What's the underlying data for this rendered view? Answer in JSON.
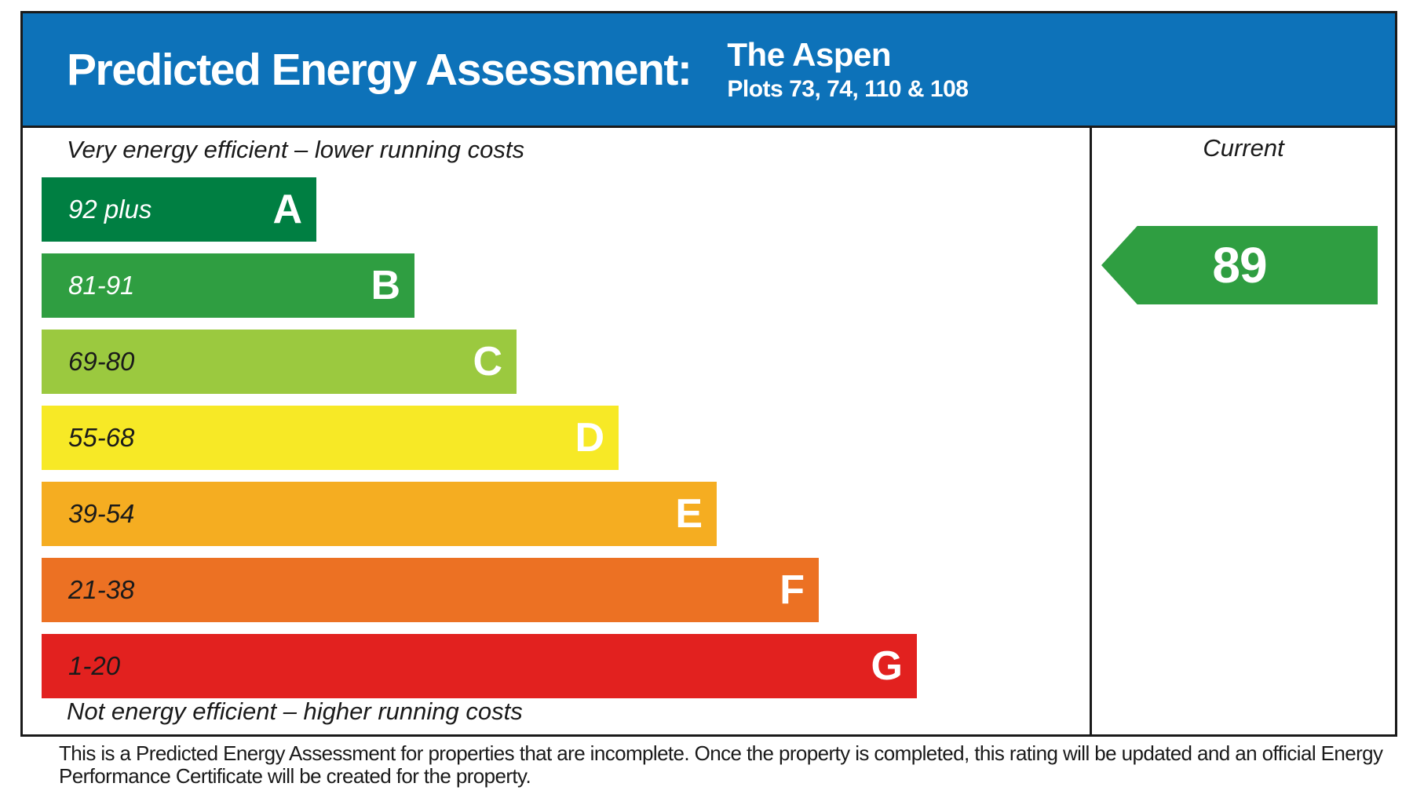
{
  "header": {
    "title": "Predicted Energy Assessment:",
    "property_name": "The Aspen",
    "plots": "Plots 73, 74, 110 & 108",
    "background": "#0d72b9"
  },
  "chart_data": {
    "type": "bar",
    "subtype": "epc-rating-scale",
    "top_caption": "Very energy efficient – lower running costs",
    "bottom_caption": "Not energy efficient – higher running costs",
    "bands": [
      {
        "letter": "A",
        "range": "92 plus",
        "color": "#007f42",
        "label_color": "#ffffff",
        "width_px": "350px"
      },
      {
        "letter": "B",
        "range": "81-91",
        "color": "#2f9e41",
        "label_color": "#ffffff",
        "width_px": "475px"
      },
      {
        "letter": "C",
        "range": "69-80",
        "color": "#9bc93f",
        "label_color": "#1a1a1a",
        "width_px": "605px"
      },
      {
        "letter": "D",
        "range": "55-68",
        "color": "#f7e926",
        "label_color": "#1a1a1a",
        "width_px": "735px"
      },
      {
        "letter": "E",
        "range": "39-54",
        "color": "#f5ad21",
        "label_color": "#1a1a1a",
        "width_px": "860px"
      },
      {
        "letter": "F",
        "range": "21-38",
        "color": "#ec7123",
        "label_color": "#1a1a1a",
        "width_px": "990px"
      },
      {
        "letter": "G",
        "range": "1-20",
        "color": "#e2211f",
        "label_color": "#1a1a1a",
        "width_px": "1115px"
      }
    ],
    "current": {
      "column_label": "Current",
      "value": "89",
      "band": "B",
      "arrow_color": "#2f9e41"
    }
  },
  "footer": {
    "disclaimer": "This is a Predicted Energy Assessment for properties that are incomplete. Once the property is completed, this rating will be updated and an official Energy Performance Certificate will be created for the property."
  }
}
